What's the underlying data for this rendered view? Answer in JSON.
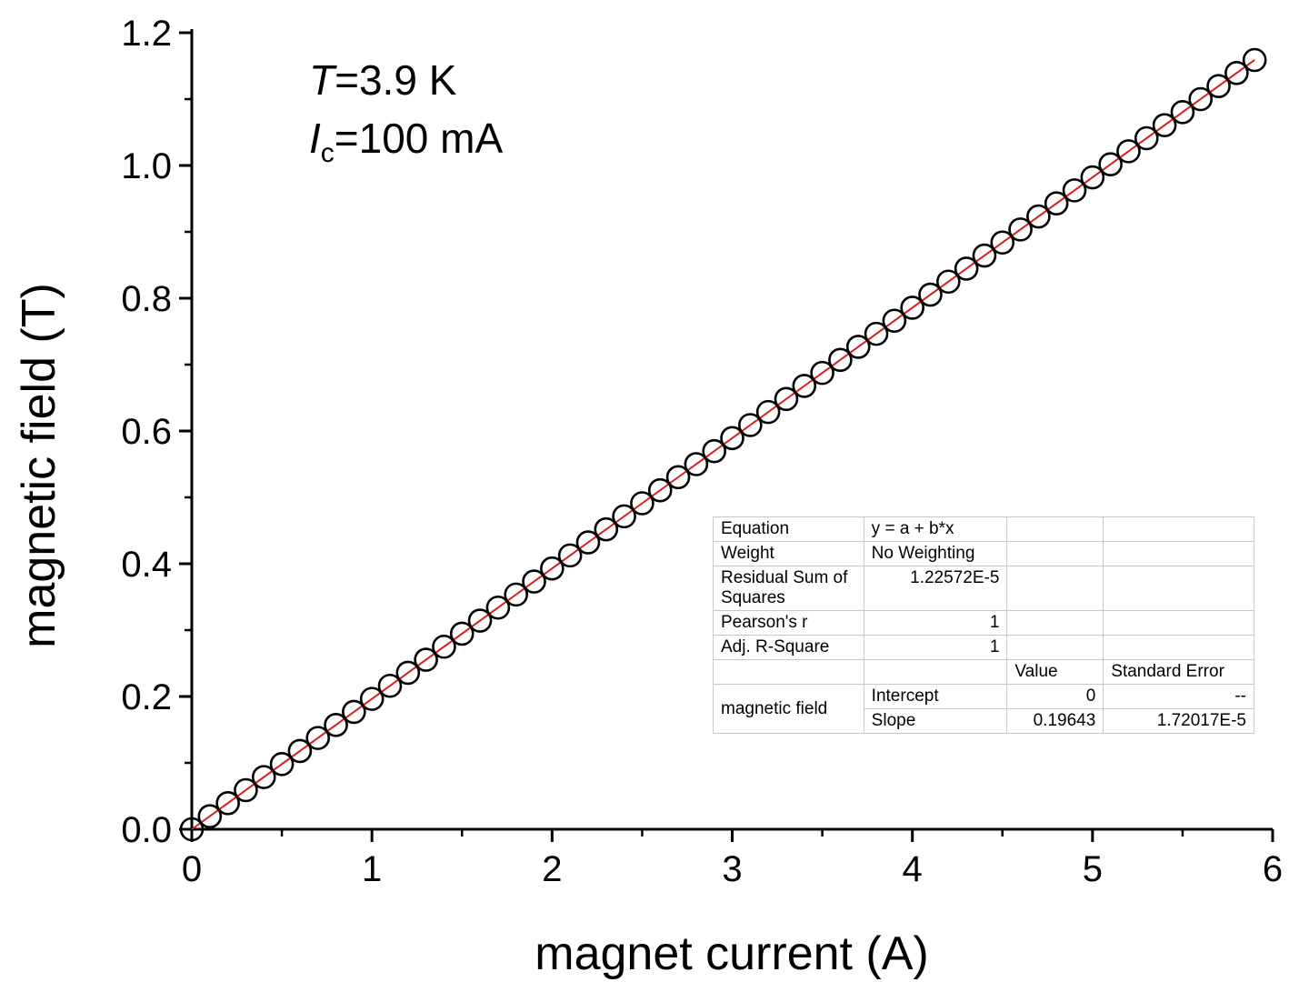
{
  "chart_data": {
    "type": "scatter",
    "xlabel": "magnet current (A)",
    "ylabel": "magnetic field (T)",
    "xlim": [
      0,
      6
    ],
    "ylim": [
      0,
      1.2
    ],
    "xticks": [
      "0",
      "1",
      "2",
      "3",
      "4",
      "5",
      "6"
    ],
    "yticks": [
      "0.0",
      "0.2",
      "0.4",
      "0.6",
      "0.8",
      "1.0",
      "1.2"
    ],
    "grid": false,
    "annotation": {
      "T_label": "T",
      "T_value": "=3.9 K",
      "I_label": "I",
      "I_sub": "c",
      "I_value": "=100 mA"
    },
    "series": [
      {
        "marker": "open-circle",
        "color": "#000000",
        "x": [
          0.0,
          0.1,
          0.2,
          0.3,
          0.4,
          0.5,
          0.6,
          0.7,
          0.8,
          0.9,
          1.0,
          1.1,
          1.2,
          1.3,
          1.4,
          1.5,
          1.6,
          1.7,
          1.8,
          1.9,
          2.0,
          2.1,
          2.2,
          2.3,
          2.4,
          2.5,
          2.6,
          2.7,
          2.8,
          2.9,
          3.0,
          3.1,
          3.2,
          3.3,
          3.4,
          3.5,
          3.6,
          3.7,
          3.8,
          3.9,
          4.0,
          4.1,
          4.2,
          4.3,
          4.4,
          4.5,
          4.6,
          4.7,
          4.8,
          4.9,
          5.0,
          5.1,
          5.2,
          5.3,
          5.4,
          5.5,
          5.6,
          5.7,
          5.8,
          5.9
        ],
        "y": [
          0.0,
          0.0196,
          0.0393,
          0.0589,
          0.0786,
          0.0982,
          0.1179,
          0.1375,
          0.1571,
          0.1768,
          0.1964,
          0.2161,
          0.2357,
          0.2554,
          0.275,
          0.2946,
          0.3143,
          0.3339,
          0.3536,
          0.3732,
          0.3929,
          0.4125,
          0.4321,
          0.4518,
          0.4714,
          0.4911,
          0.5107,
          0.5304,
          0.55,
          0.5696,
          0.5893,
          0.6089,
          0.6286,
          0.6482,
          0.6679,
          0.6875,
          0.7071,
          0.7268,
          0.7464,
          0.7661,
          0.7857,
          0.8054,
          0.825,
          0.8446,
          0.8643,
          0.8839,
          0.9036,
          0.9232,
          0.9429,
          0.9625,
          0.9821,
          1.0018,
          1.0214,
          1.0411,
          1.0607,
          1.0804,
          1.1,
          1.1196,
          1.1393,
          1.1589
        ]
      }
    ],
    "fit": {
      "intercept": 0,
      "slope": 0.19643,
      "x_range": [
        0,
        5.9
      ],
      "color": "#d62020"
    },
    "fit_table": {
      "rows": [
        [
          "Equation",
          "y = a + b*x",
          "",
          ""
        ],
        [
          "Weight",
          "No Weighting",
          "",
          ""
        ],
        [
          "Residual Sum of Squares",
          "1.22572E-5",
          "",
          ""
        ],
        [
          "Pearson's r",
          "1",
          "",
          ""
        ],
        [
          "Adj. R-Square",
          "1",
          "",
          ""
        ],
        [
          "",
          "",
          "Value",
          "Standard Error"
        ]
      ],
      "group_label": "magnetic field",
      "params": [
        [
          "Intercept",
          "0",
          "--"
        ],
        [
          "Slope",
          "0.19643",
          "1.72017E-5"
        ]
      ]
    }
  }
}
